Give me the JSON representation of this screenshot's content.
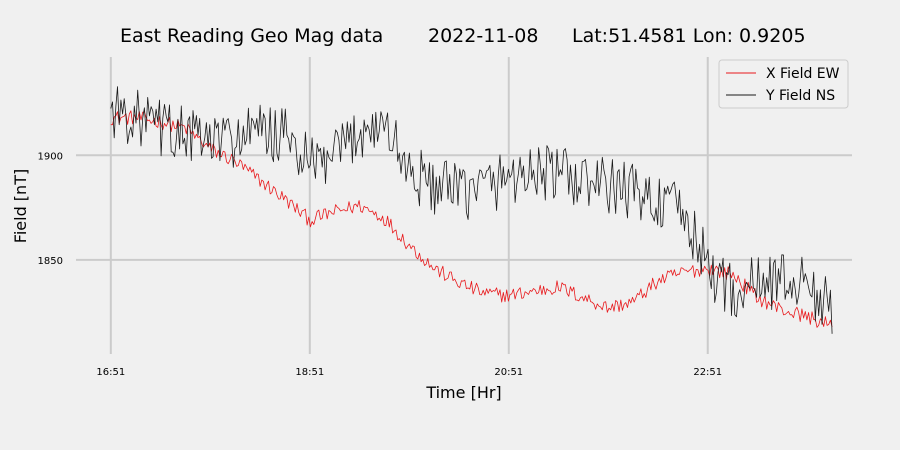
{
  "chart_data": {
    "type": "line",
    "title": {
      "name": "East Reading Geo Mag data",
      "date": "2022-11-08",
      "location": "Lat:51.4581  Lon: 0.9205"
    },
    "xlabel": "Time  [Hr]",
    "ylabel": "Field  [nT]",
    "x_ticks": [
      {
        "label": "16:51",
        "hours": 16.85
      },
      {
        "label": "18:51",
        "hours": 18.85
      },
      {
        "label": "20:51",
        "hours": 20.85
      },
      {
        "label": "22:51",
        "hours": 22.85
      }
    ],
    "y_ticks": [
      {
        "label": "1900",
        "value": 1900
      },
      {
        "label": "1850",
        "value": 1850
      }
    ],
    "xlim_hours": [
      16.5,
      24.3
    ],
    "ylim": [
      1805,
      1947
    ],
    "grid": true,
    "legend_position": "top-right",
    "colors": {
      "background": "#f0f0f0",
      "grid": "#cbcbcb",
      "x_series": "#e8191c",
      "y_series": "#1a1a1a"
    },
    "series": [
      {
        "name": "X Field EW",
        "color": "#e8191c",
        "x_hours": [
          16.85,
          17.1,
          17.35,
          17.6,
          17.85,
          18.1,
          18.35,
          18.6,
          18.85,
          19.1,
          19.35,
          19.6,
          19.85,
          20.1,
          20.35,
          20.6,
          20.85,
          21.1,
          21.35,
          21.6,
          21.85,
          22.1,
          22.35,
          22.6,
          22.85,
          23.1,
          23.35,
          23.6,
          23.85,
          24.0,
          24.1
        ],
        "values": [
          1918,
          1918,
          1916,
          1913,
          1903,
          1897,
          1888,
          1879,
          1869,
          1873,
          1876,
          1870,
          1857,
          1846,
          1839,
          1834,
          1833,
          1835,
          1837,
          1832,
          1827,
          1830,
          1840,
          1844,
          1846,
          1843,
          1832,
          1826,
          1823,
          1820,
          1818
        ]
      },
      {
        "name": "Y Field NS",
        "color": "#1a1a1a",
        "x_hours": [
          16.85,
          17.1,
          17.35,
          17.6,
          17.85,
          18.1,
          18.35,
          18.6,
          18.85,
          19.1,
          19.35,
          19.6,
          19.85,
          20.1,
          20.35,
          20.6,
          20.85,
          21.1,
          21.35,
          21.6,
          21.85,
          22.1,
          22.35,
          22.6,
          22.85,
          23.1,
          23.35,
          23.6,
          23.85,
          24.0,
          24.1
        ],
        "values": [
          1922,
          1918,
          1913,
          1910,
          1906,
          1908,
          1911,
          1909,
          1895,
          1898,
          1912,
          1915,
          1892,
          1885,
          1882,
          1885,
          1890,
          1892,
          1891,
          1887,
          1885,
          1883,
          1878,
          1872,
          1847,
          1834,
          1839,
          1841,
          1838,
          1830,
          1825
        ]
      }
    ]
  }
}
